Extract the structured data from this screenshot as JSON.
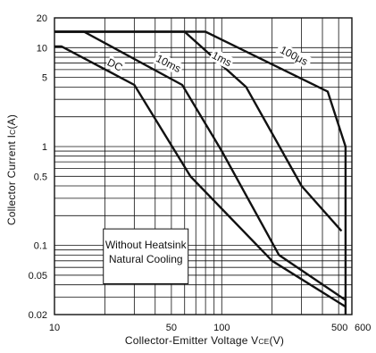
{
  "chart_data": {
    "type": "line",
    "xscale": "log",
    "yscale": "log",
    "xlim": [
      10,
      600
    ],
    "ylim": [
      0.02,
      20
    ],
    "grid": true,
    "xlabel": {
      "main": "Collector-Emitter Voltage V",
      "sub": "CE",
      "unit": "(V)"
    },
    "ylabel": {
      "main": "Collector Current I",
      "sub": "C",
      "unit": "(A)"
    },
    "x_ticks": [
      {
        "value": 10,
        "label": "10"
      },
      {
        "value": 50,
        "label": "50"
      },
      {
        "value": 100,
        "label": "100"
      },
      {
        "value": 500,
        "label": "500"
      },
      {
        "value": 600,
        "label": "600"
      }
    ],
    "y_ticks": [
      {
        "value": 20,
        "label": "20"
      },
      {
        "value": 10,
        "label": "10"
      },
      {
        "value": 5,
        "label": "5"
      },
      {
        "value": 1,
        "label": "1"
      },
      {
        "value": 0.5,
        "label": "0.5"
      },
      {
        "value": 0.1,
        "label": "0.1"
      },
      {
        "value": 0.05,
        "label": "0.05"
      },
      {
        "value": 0.02,
        "label": "0.02"
      }
    ],
    "series": [
      {
        "name": "DC",
        "label_at": {
          "x": 23,
          "y": 6.7
        },
        "points": [
          [
            10,
            10.3
          ],
          [
            11,
            10.3
          ],
          [
            30,
            4.2
          ],
          [
            65,
            0.5
          ],
          [
            200,
            0.07
          ],
          [
            550,
            0.024
          ]
        ]
      },
      {
        "name": "10ms",
        "label_at": {
          "x": 48,
          "y": 6.9
        },
        "points": [
          [
            10,
            14.5
          ],
          [
            15,
            14.5
          ],
          [
            58,
            4.2
          ],
          [
            100,
            0.9
          ],
          [
            220,
            0.08
          ],
          [
            550,
            0.028
          ]
        ]
      },
      {
        "name": "1ms",
        "label_at": {
          "x": 100,
          "y": 7.7
        },
        "points": [
          [
            10,
            14.5
          ],
          [
            60,
            14.5
          ],
          [
            140,
            4.0
          ],
          [
            300,
            0.4
          ],
          [
            520,
            0.14
          ]
        ]
      },
      {
        "name": "100μs",
        "label_at": {
          "x": 270,
          "y": 8.3
        },
        "points": [
          [
            10,
            14.5
          ],
          [
            80,
            14.5
          ],
          [
            430,
            3.6
          ],
          [
            550,
            1.0
          ],
          [
            550,
            0.02
          ]
        ]
      }
    ],
    "annotation": {
      "lines": [
        "Without Heatsink",
        "Natural Cooling"
      ]
    },
    "colors": {
      "line": "#111111",
      "grid": "#111111",
      "background": "#ffffff"
    }
  }
}
